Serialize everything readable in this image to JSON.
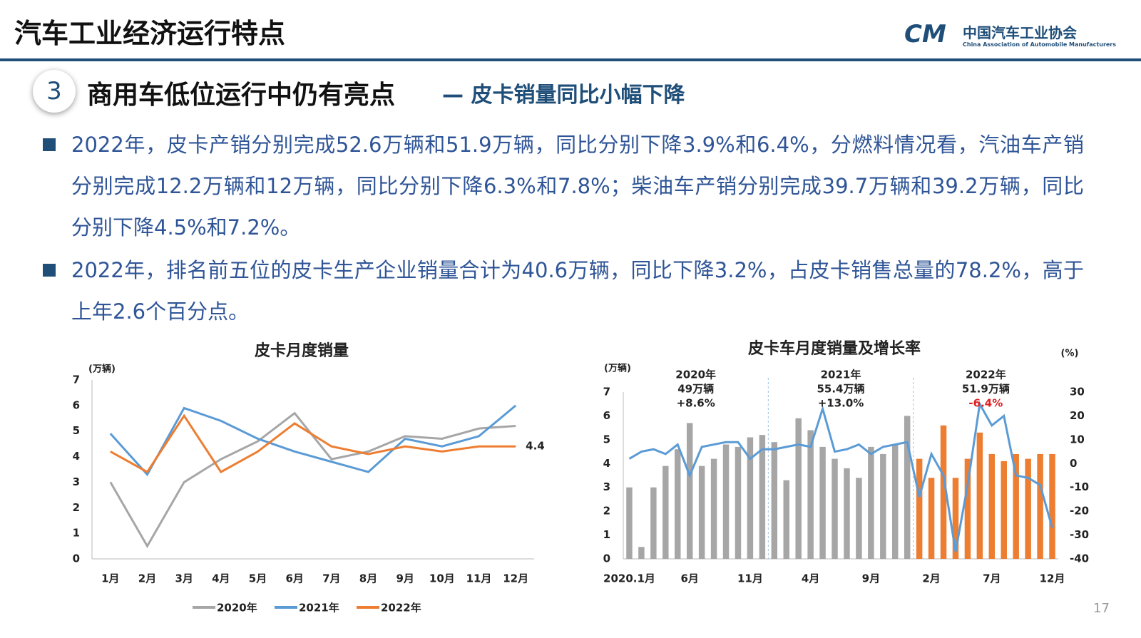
{
  "header": {
    "title": "汽车工业经济运行特点",
    "logo_cn": "中国汽车工业协会",
    "logo_en": "China Association of Automobile Manufacturers"
  },
  "section": {
    "number": "3",
    "title": "商用车低位运行中仍有亮点",
    "subtitle": "— 皮卡销量同比小幅下降"
  },
  "bullets": [
    "2022年，皮卡产销分别完成52.6万辆和51.9万辆，同比分别下降3.9%和6.4%，分燃料情况看，汽油车产销分别完成12.2万辆和12万辆，同比分别下降6.3%和7.8%；柴油车产销分别完成39.7万辆和39.2万辆，同比分别下降4.5%和7.2%。",
    "2022年，排名前五位的皮卡生产企业销量合计为40.6万辆，同比下降3.2%，占皮卡销售总量的78.2%，高于上年2.6个百分点。"
  ],
  "page_number": "17",
  "chart_data": [
    {
      "type": "line",
      "title": "皮卡月度销量",
      "y_label": "(万辆)",
      "grid": false,
      "categories": [
        "1月",
        "2月",
        "3月",
        "4月",
        "5月",
        "6月",
        "7月",
        "8月",
        "9月",
        "10月",
        "11月",
        "12月"
      ],
      "ylim": [
        0,
        7
      ],
      "yticks": [
        0,
        1,
        2,
        3,
        4,
        5,
        6,
        7
      ],
      "series": [
        {
          "name": "2020年",
          "color": "#a6a6a6",
          "values": [
            3.0,
            0.5,
            3.0,
            3.9,
            4.6,
            5.7,
            3.9,
            4.2,
            4.8,
            4.7,
            5.1,
            5.2
          ]
        },
        {
          "name": "2021年",
          "color": "#5b9bd5",
          "values": [
            4.9,
            3.3,
            5.9,
            5.4,
            4.7,
            4.2,
            3.8,
            3.4,
            4.7,
            4.4,
            4.8,
            6.0
          ]
        },
        {
          "name": "2022年",
          "color": "#ed7d31",
          "values": [
            4.2,
            3.4,
            5.6,
            3.4,
            4.2,
            5.3,
            4.4,
            4.1,
            4.4,
            4.2,
            4.4,
            4.4
          ]
        }
      ]
    },
    {
      "type": "bar_line",
      "title": "皮卡车月度销量及增长率",
      "y_label": "(万辆)",
      "y2_label": "(%)",
      "grid": false,
      "categories": [
        "2020.1月",
        null,
        null,
        null,
        null,
        "6月",
        null,
        null,
        null,
        null,
        "11月",
        null,
        null,
        null,
        null,
        "4月",
        null,
        null,
        null,
        null,
        "9月",
        null,
        null,
        null,
        null,
        "2月",
        null,
        null,
        null,
        null,
        "7月",
        null,
        null,
        null,
        null,
        "12月"
      ],
      "ylim": [
        0,
        7
      ],
      "yticks": [
        0,
        1,
        2,
        3,
        4,
        5,
        6,
        7
      ],
      "y2lim": [
        -40,
        30
      ],
      "y2ticks": [
        -40,
        -30,
        -20,
        -10,
        0,
        10,
        20,
        30
      ],
      "series": [
        {
          "type": "bar",
          "color": "#a6a6a6",
          "values": [
            3.0,
            0.5,
            3.0,
            3.9,
            4.6,
            5.7,
            3.9,
            4.2,
            4.8,
            4.7,
            5.1,
            5.2,
            4.9,
            3.3,
            5.9,
            5.4,
            4.7,
            4.2,
            3.8,
            3.4,
            4.7,
            4.4,
            4.8,
            6.0,
            null,
            null,
            null,
            null,
            null,
            null,
            null,
            null,
            null,
            null,
            null,
            null
          ]
        },
        {
          "type": "bar",
          "color": "#ed7d31",
          "values": [
            null,
            null,
            null,
            null,
            null,
            null,
            null,
            null,
            null,
            null,
            null,
            null,
            null,
            null,
            null,
            null,
            null,
            null,
            null,
            null,
            null,
            null,
            null,
            null,
            4.2,
            3.4,
            5.6,
            3.4,
            4.2,
            5.3,
            4.4,
            4.1,
            4.4,
            4.2,
            4.4,
            4.4
          ]
        },
        {
          "type": "line",
          "axis": "y2",
          "color": "#5b9bd5",
          "values": [
            2,
            5,
            6,
            4,
            8,
            -5,
            7,
            8,
            9,
            9,
            2,
            6,
            6,
            7,
            8,
            7,
            23,
            5,
            6,
            8,
            4,
            7,
            8,
            9,
            -14,
            4,
            -5,
            -37,
            -9,
            25,
            16,
            20,
            -5,
            -6,
            -9,
            -27
          ]
        }
      ],
      "annotations": [
        {
          "lines": [
            "2020年",
            "49万辆",
            "+8.6%"
          ]
        },
        {
          "lines": [
            "2021年",
            "55.4万辆",
            "+13.0%"
          ]
        },
        {
          "lines": [
            "2022年",
            "51.9万辆",
            "-6.4%"
          ],
          "last_line_color": "#e02020"
        }
      ]
    }
  ]
}
